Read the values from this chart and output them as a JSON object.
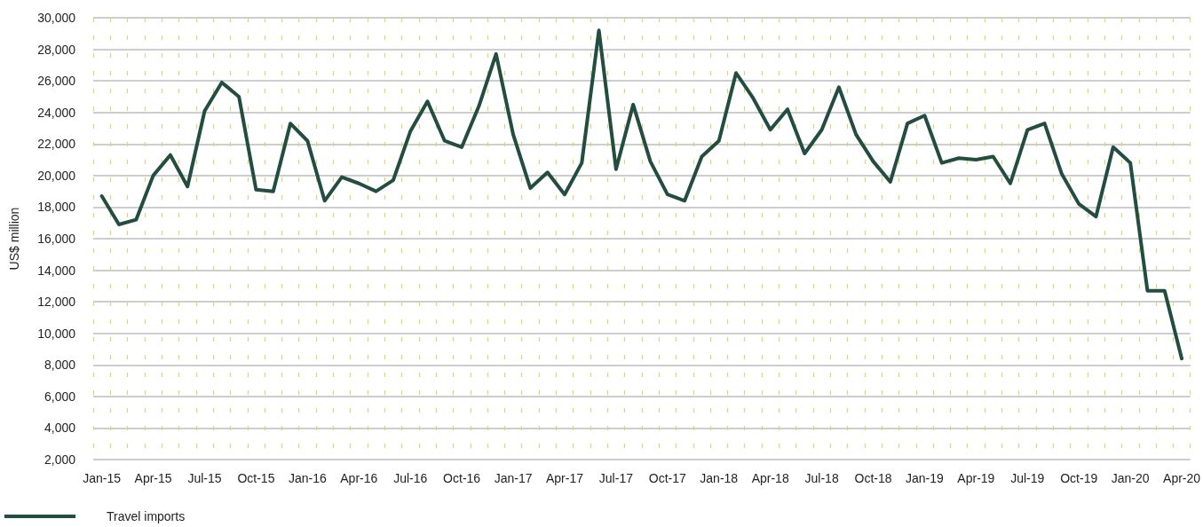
{
  "chart_data": {
    "type": "line",
    "ylabel": "US$ million",
    "categories": [
      "Jan-15",
      null,
      null,
      "Apr-15",
      null,
      null,
      "Jul-15",
      null,
      null,
      "Oct-15",
      null,
      null,
      "Jan-16",
      null,
      null,
      "Apr-16",
      null,
      null,
      "Jul-16",
      null,
      null,
      "Oct-16",
      null,
      null,
      "Jan-17",
      null,
      null,
      "Apr-17",
      null,
      null,
      "Jul-17",
      null,
      null,
      "Oct-17",
      null,
      null,
      "Jan-18",
      null,
      null,
      "Apr-18",
      null,
      null,
      "Jul-18",
      null,
      null,
      "Oct-18",
      null,
      null,
      "Jan-19",
      null,
      null,
      "Apr-19",
      null,
      null,
      "Jul-19",
      null,
      null,
      "Oct-19",
      null,
      null,
      "Jan-20",
      null,
      null,
      "Apr-20"
    ],
    "series": [
      {
        "name": "Travel imports",
        "color": "#234d3e",
        "values": [
          18700,
          16900,
          17200,
          20000,
          21300,
          19300,
          24100,
          25900,
          25000,
          19100,
          19000,
          23300,
          22200,
          18400,
          19900,
          19500,
          19000,
          19700,
          22800,
          24700,
          22200,
          21800,
          24400,
          27700,
          22600,
          19200,
          20200,
          18800,
          20800,
          29200,
          20400,
          24500,
          20900,
          18800,
          18400,
          21200,
          22200,
          26500,
          24900,
          22900,
          24200,
          21400,
          22900,
          25600,
          22600,
          20900,
          19600,
          23300,
          23800,
          20800,
          21100,
          21000,
          21200,
          19500,
          22900,
          23300,
          20100,
          18200,
          17400,
          21800,
          20800,
          12700,
          12700,
          8400
        ]
      }
    ],
    "ylim": [
      2000,
      30000
    ],
    "yticks": [
      {
        "value": 2000,
        "label": "2,000"
      },
      {
        "value": 4000,
        "label": "4,000"
      },
      {
        "value": 6000,
        "label": "6,000"
      },
      {
        "value": 8000,
        "label": "8,000"
      },
      {
        "value": 10000,
        "label": "10,000"
      },
      {
        "value": 12000,
        "label": "12,000"
      },
      {
        "value": 14000,
        "label": "14,000"
      },
      {
        "value": 16000,
        "label": "16,000"
      },
      {
        "value": 18000,
        "label": "18,000"
      },
      {
        "value": 20000,
        "label": "20,000"
      },
      {
        "value": 22000,
        "label": "22,000"
      },
      {
        "value": 24000,
        "label": "24,000"
      },
      {
        "value": 26000,
        "label": "26,000"
      },
      {
        "value": 28000,
        "label": "28,000"
      },
      {
        "value": 30000,
        "label": "30,000"
      }
    ],
    "grid": true,
    "legend": "bottom left",
    "marker": "none",
    "line_style": "solid"
  }
}
